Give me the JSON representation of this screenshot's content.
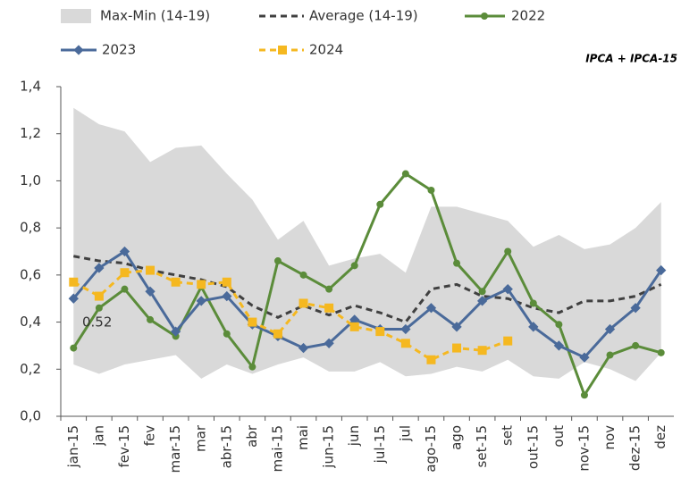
{
  "chart_data": {
    "type": "line",
    "annotations": [
      "IPCA + IPCA-15",
      "0.52"
    ],
    "categories": [
      "jan-15",
      "jan",
      "fev-15",
      "fev",
      "mar-15",
      "mar",
      "abr-15",
      "abr",
      "mai-15",
      "mai",
      "jun-15",
      "jun",
      "jul-15",
      "jul",
      "ago-15",
      "ago",
      "set-15",
      "set",
      "out-15",
      "out",
      "nov-15",
      "nov",
      "dez-15",
      "dez"
    ],
    "ylim": [
      0,
      1.4
    ],
    "yticks": [
      {
        "value": 0,
        "label": "0,0"
      },
      {
        "value": 0.2,
        "label": "0,2"
      },
      {
        "value": 0.4,
        "label": "0,4"
      },
      {
        "value": 0.6,
        "label": "0,6"
      },
      {
        "value": 0.8,
        "label": "0,8"
      },
      {
        "value": 1.0,
        "label": "1,0"
      },
      {
        "value": 1.2,
        "label": "1,2"
      },
      {
        "value": 1.4,
        "label": "1,4"
      }
    ],
    "band": {
      "name": "Max-Min (14-19)",
      "color": "#d9d9d9",
      "upper": [
        1.31,
        1.24,
        1.21,
        1.08,
        1.14,
        1.15,
        1.03,
        0.92,
        0.75,
        0.83,
        0.64,
        0.67,
        0.69,
        0.61,
        0.89,
        0.89,
        0.86,
        0.83,
        0.72,
        0.77,
        0.71,
        0.73,
        0.8,
        0.91
      ],
      "lower": [
        0.22,
        0.18,
        0.22,
        0.24,
        0.26,
        0.16,
        0.22,
        0.18,
        0.22,
        0.25,
        0.19,
        0.19,
        0.23,
        0.17,
        0.18,
        0.21,
        0.19,
        0.24,
        0.17,
        0.16,
        0.23,
        0.2,
        0.15,
        0.27
      ]
    },
    "series": [
      {
        "name": "Average (14-19)",
        "color": "#404040",
        "dash": true,
        "marker": "none",
        "values": [
          0.68,
          0.66,
          0.65,
          0.62,
          0.6,
          0.58,
          0.55,
          0.47,
          0.42,
          0.47,
          0.43,
          0.47,
          0.44,
          0.4,
          0.54,
          0.56,
          0.51,
          0.5,
          0.46,
          0.44,
          0.49,
          0.49,
          0.51,
          0.56
        ]
      },
      {
        "name": "2022",
        "color": "#5b8c3a",
        "marker": "circle",
        "values": [
          0.29,
          0.46,
          0.54,
          0.41,
          0.34,
          0.55,
          0.35,
          0.21,
          0.66,
          0.6,
          0.54,
          0.64,
          0.9,
          1.03,
          0.96,
          0.65,
          0.53,
          0.7,
          0.48,
          0.39,
          0.09,
          0.26,
          0.3,
          0.27
        ]
      },
      {
        "name": "2023",
        "color": "#4a6a9a",
        "marker": "diamond",
        "values": [
          0.5,
          0.63,
          0.7,
          0.53,
          0.36,
          0.49,
          0.51,
          0.39,
          0.34,
          0.29,
          0.31,
          0.41,
          0.37,
          0.37,
          0.46,
          0.38,
          0.49,
          0.54,
          0.38,
          0.3,
          0.25,
          0.37,
          0.46,
          0.62
        ]
      },
      {
        "name": "2024",
        "color": "#f5b820",
        "dash": true,
        "marker": "square",
        "values": [
          0.57,
          0.51,
          0.61,
          0.62,
          0.57,
          0.56,
          0.57,
          0.4,
          0.35,
          0.48,
          0.46,
          0.38,
          0.36,
          0.31,
          0.24,
          0.29,
          0.28,
          0.32,
          null,
          null,
          null,
          null,
          null,
          null
        ]
      }
    ]
  }
}
